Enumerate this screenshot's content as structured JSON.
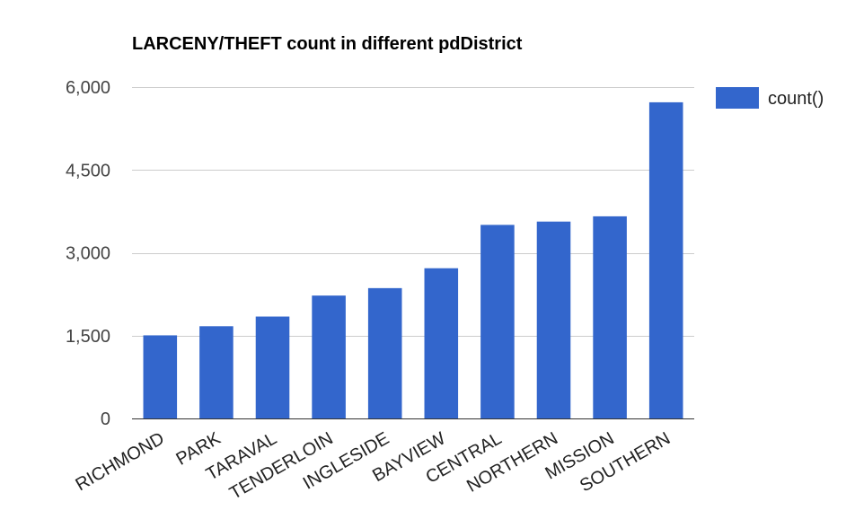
{
  "colors": {
    "bar": "#3366cc",
    "grid": "#cccccc",
    "baseline": "#333333",
    "background": "#ffffff"
  },
  "chart_data": {
    "type": "bar",
    "title": "LARCENY/THEFT count in different pdDistrict",
    "xlabel": "",
    "ylabel": "",
    "categories": [
      "RICHMOND",
      "PARK",
      "TARAVAL",
      "TENDERLOIN",
      "INGLESIDE",
      "BAYVIEW",
      "CENTRAL",
      "NORTHERN",
      "MISSION",
      "SOUTHERN"
    ],
    "series": [
      {
        "name": "count()",
        "values": [
          1505,
          1670,
          1845,
          2225,
          2360,
          2720,
          3505,
          3565,
          3660,
          5725
        ]
      }
    ],
    "ylim": [
      0,
      6000
    ],
    "yticks": [
      0,
      1500,
      3000,
      4500,
      6000
    ],
    "ytick_labels": [
      "0",
      "1,500",
      "3,000",
      "4,500",
      "6,000"
    ],
    "grid": true,
    "legend": {
      "position": "right",
      "entries": [
        "count()"
      ]
    }
  }
}
